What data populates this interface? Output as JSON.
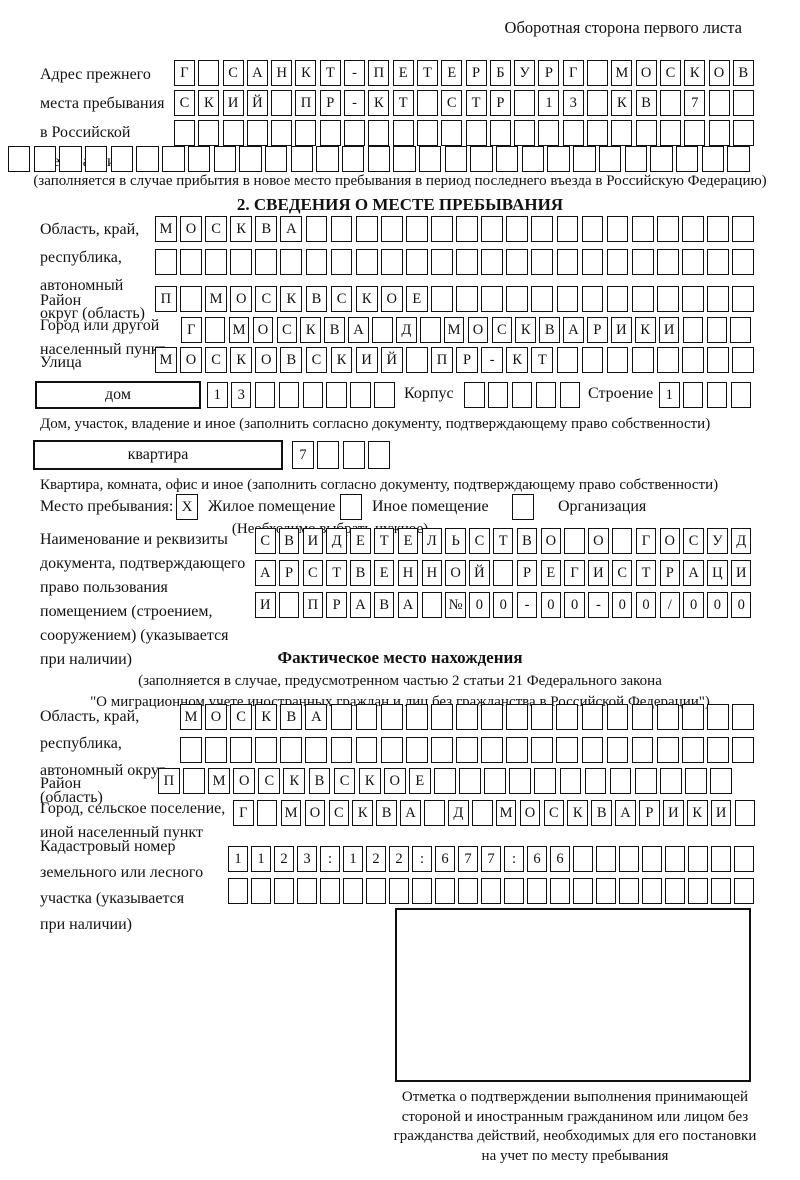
{
  "page": {
    "header": "Оборотная сторона первого листа"
  },
  "prev_address": {
    "label": "Адрес прежнего\nместа пребывания\nв Российской\nФедерации",
    "rows": [
      [
        "Г",
        "",
        "С",
        "А",
        "Н",
        "К",
        "Т",
        "-",
        "П",
        "Е",
        "Т",
        "Е",
        "Р",
        "Б",
        "У",
        "Р",
        "Г",
        "",
        "М",
        "О",
        "С",
        "К",
        "О",
        "В"
      ],
      [
        "С",
        "К",
        "И",
        "Й",
        "",
        "П",
        "Р",
        "-",
        "К",
        "Т",
        "",
        "С",
        "Т",
        "Р",
        "",
        "1",
        "3",
        "",
        "К",
        "В",
        "",
        "7",
        "",
        ""
      ],
      [
        "",
        "",
        "",
        "",
        "",
        "",
        "",
        "",
        "",
        "",
        "",
        "",
        "",
        "",
        "",
        "",
        "",
        "",
        "",
        "",
        "",
        "",
        "",
        ""
      ],
      [
        "",
        "",
        "",
        "",
        "",
        "",
        "",
        "",
        "",
        "",
        "",
        "",
        "",
        "",
        "",
        "",
        "",
        "",
        "",
        "",
        "",
        "",
        "",
        "",
        "",
        "",
        "",
        "",
        ""
      ]
    ],
    "note": "(заполняется в случае прибытия в новое место пребывания в период последнего въезда в Российскую Федерацию)"
  },
  "section2": {
    "title": "2. СВЕДЕНИЯ О МЕСТЕ ПРЕБЫВАНИЯ",
    "region": {
      "label": "Область, край,\nреспублика,\nавтономный\nокруг (область)",
      "row1": [
        "М",
        "О",
        "С",
        "К",
        "В",
        "А",
        "",
        "",
        "",
        "",
        "",
        "",
        "",
        "",
        "",
        "",
        "",
        "",
        "",
        "",
        "",
        "",
        "",
        ""
      ],
      "row2": [
        "",
        "",
        "",
        "",
        "",
        "",
        "",
        "",
        "",
        "",
        "",
        "",
        "",
        "",
        "",
        "",
        "",
        "",
        "",
        "",
        "",
        "",
        "",
        ""
      ]
    },
    "district": {
      "label": "Район",
      "row": [
        "П",
        "",
        "М",
        "О",
        "С",
        "К",
        "В",
        "С",
        "К",
        "О",
        "Е",
        "",
        "",
        "",
        "",
        "",
        "",
        "",
        "",
        "",
        "",
        "",
        "",
        ""
      ]
    },
    "city": {
      "label": "Город или другой\nнаселенный пункт",
      "row": [
        "Г",
        "",
        "М",
        "О",
        "С",
        "К",
        "В",
        "А",
        "",
        "Д",
        "",
        "М",
        "О",
        "С",
        "К",
        "В",
        "А",
        "Р",
        "И",
        "К",
        "И",
        "",
        "",
        ""
      ]
    },
    "street": {
      "label": "Улица",
      "row": [
        "М",
        "О",
        "С",
        "К",
        "О",
        "В",
        "С",
        "К",
        "И",
        "Й",
        "",
        "П",
        "Р",
        "-",
        "К",
        "Т",
        "",
        "",
        "",
        "",
        "",
        "",
        "",
        ""
      ]
    },
    "house": {
      "field_label": "дом",
      "number_cells": [
        "1",
        "3",
        "",
        "",
        "",
        "",
        "",
        ""
      ],
      "korpus_label": "Корпус",
      "korpus_cells": [
        "",
        "",
        "",
        "",
        ""
      ],
      "stroenie_label": "Строение",
      "stroenie_cells": [
        "1",
        "",
        "",
        ""
      ]
    },
    "house_note": "Дом, участок, владение и иное (заполнить согласно документу, подтверждающему право собственности)",
    "apartment": {
      "field_label": "квартира",
      "cells": [
        "7",
        "",
        "",
        ""
      ]
    },
    "apartment_note": "Квартира, комната, офис и иное (заполнить согласно документу, подтверждающему право собственности)",
    "stay": {
      "label": "Место пребывания:",
      "options": [
        {
          "label": "Жилое помещение",
          "value": "X"
        },
        {
          "label": "Иное помещение",
          "value": ""
        },
        {
          "label": "Организация",
          "value": ""
        }
      ],
      "note": "(Необходимо выбрать нужное)"
    },
    "document": {
      "label": "Наименование и реквизиты\nдокумента, подтверждающего\nправо пользования\nпомещением (строением,\nсооружением) (указывается\nпри наличии)",
      "rows": [
        [
          "С",
          "В",
          "И",
          "Д",
          "Е",
          "Т",
          "Е",
          "Л",
          "Ь",
          "С",
          "Т",
          "В",
          "О",
          "",
          "О",
          "",
          "Г",
          "О",
          "С",
          "У",
          "Д"
        ],
        [
          "А",
          "Р",
          "С",
          "Т",
          "В",
          "Е",
          "Н",
          "Н",
          "О",
          "Й",
          "",
          "Р",
          "Е",
          "Г",
          "И",
          "С",
          "Т",
          "Р",
          "А",
          "Ц",
          "И"
        ],
        [
          "И",
          "",
          "П",
          "Р",
          "А",
          "В",
          "А",
          "",
          "№",
          "0",
          "0",
          "-",
          "0",
          "0",
          "-",
          "0",
          "0",
          "/",
          "0",
          "0",
          "0"
        ]
      ]
    }
  },
  "actual_location": {
    "title": "Фактическое место нахождения",
    "note": "(заполняется в случае, предусмотренном частью 2 статьи 21 Федерального закона\n\"О миграционном учете иностранных граждан и лиц без гражданства в Российской Федерации\")",
    "region": {
      "label": "Область, край,\nреспублика,\nавтономный округ\n(область)",
      "row1": [
        "М",
        "О",
        "С",
        "К",
        "В",
        "А",
        "",
        "",
        "",
        "",
        "",
        "",
        "",
        "",
        "",
        "",
        "",
        "",
        "",
        "",
        "",
        "",
        ""
      ],
      "row2": [
        "",
        "",
        "",
        "",
        "",
        "",
        "",
        "",
        "",
        "",
        "",
        "",
        "",
        "",
        "",
        "",
        "",
        "",
        "",
        "",
        "",
        "",
        ""
      ]
    },
    "district": {
      "label": "Район",
      "row": [
        "П",
        "",
        "М",
        "О",
        "С",
        "К",
        "В",
        "С",
        "К",
        "О",
        "Е",
        "",
        "",
        "",
        "",
        "",
        "",
        "",
        "",
        "",
        "",
        "",
        ""
      ]
    },
    "city": {
      "label": "Город, сельское поселение,\nиной населенный пункт",
      "row": [
        "Г",
        "",
        "М",
        "О",
        "С",
        "К",
        "В",
        "А",
        "",
        "Д",
        "",
        "М",
        "О",
        "С",
        "К",
        "В",
        "А",
        "Р",
        "И",
        "К",
        "И",
        ""
      ]
    },
    "cadastral": {
      "label": "Кадастровый номер\nземельного или лесного\nучастка (указывается\nпри наличии)",
      "row1": [
        "1",
        "1",
        "2",
        "3",
        ":",
        "1",
        "2",
        "2",
        ":",
        "6",
        "7",
        "7",
        ":",
        "6",
        "6",
        "",
        "",
        "",
        "",
        "",
        "",
        "",
        ""
      ],
      "row2": [
        "",
        "",
        "",
        "",
        "",
        "",
        "",
        "",
        "",
        "",
        "",
        "",
        "",
        "",
        "",
        "",
        "",
        "",
        "",
        "",
        "",
        "",
        ""
      ]
    },
    "stamp_note": "Отметка о подтверждении выполнения принимающей\nстороной и иностранным гражданином или лицом без\nгражданства действий, необходимых для его постановки\nна учет по месту пребывания"
  }
}
